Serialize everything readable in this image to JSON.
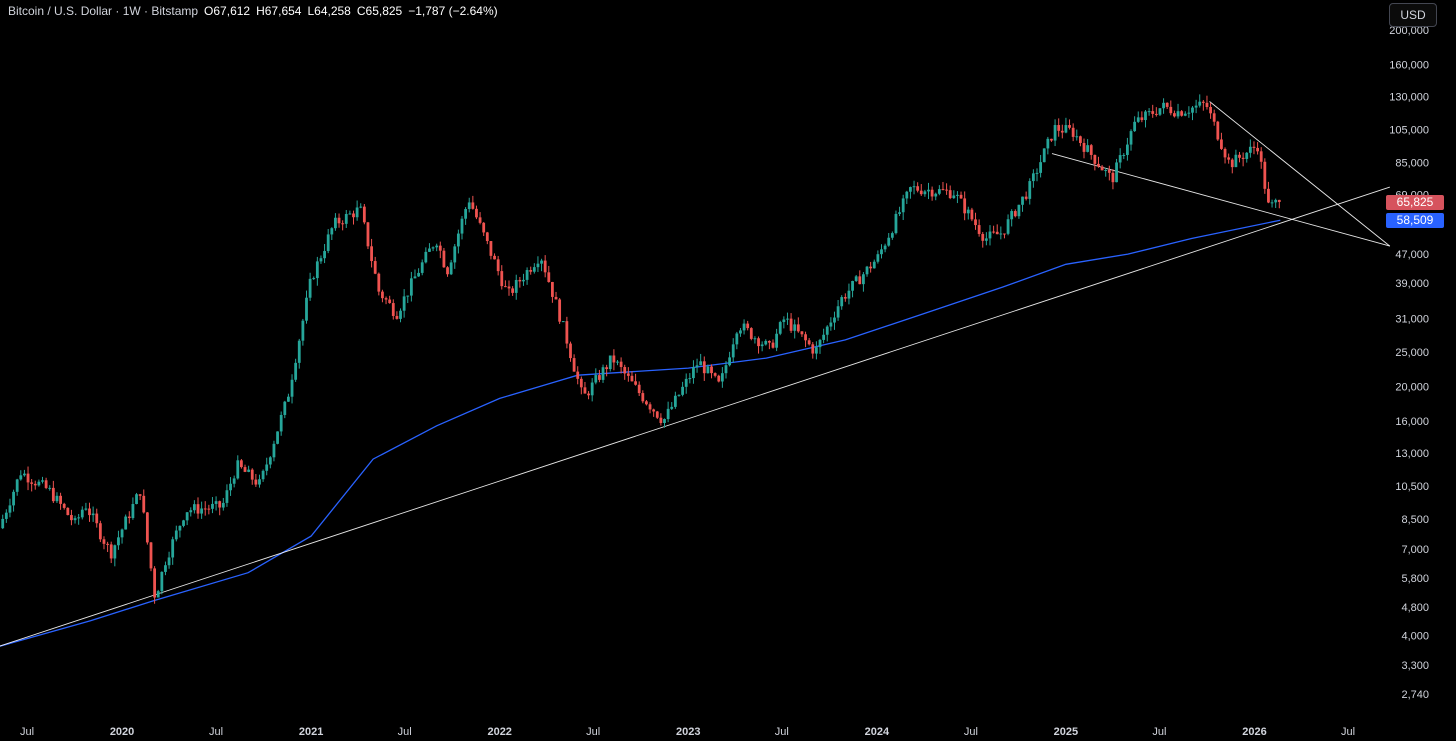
{
  "header": {
    "symbol": "Bitcoin / U.S. Dollar · 1W · Bitstamp",
    "open": "O67,612",
    "high": "H67,654",
    "low": "L64,258",
    "close": "C65,825",
    "change": "−1,787 (−2.64%)"
  },
  "currency_button": "USD",
  "price_badge": "65,825",
  "ma_badge": "58,509",
  "colors": {
    "up": "#26a69a",
    "down": "#ef5350",
    "ma": "#2962ff",
    "trendline": "#ffffff",
    "background": "#000000",
    "axis_text": "#d1d4dc"
  },
  "chart_data": {
    "type": "candlestick",
    "scale": "log",
    "interval": "1W",
    "x_labels": [
      "Jul",
      "2020",
      "Jul",
      "2021",
      "Jul",
      "2022",
      "Jul",
      "2023",
      "Jul",
      "2024",
      "Jul",
      "2025",
      "Jul",
      "2026",
      "Jul"
    ],
    "x_label_dates": [
      "2019-07",
      "2020-01",
      "2020-07",
      "2021-01",
      "2021-07",
      "2022-01",
      "2022-07",
      "2023-01",
      "2023-07",
      "2024-01",
      "2024-07",
      "2025-01",
      "2025-07",
      "2026-01",
      "2026-07"
    ],
    "y_ticks": [
      200000,
      160000,
      130000,
      105000,
      85000,
      69000,
      47000,
      39000,
      31000,
      25000,
      20000,
      16000,
      13000,
      10500,
      8500,
      7000,
      5800,
      4800,
      4000,
      3300,
      2740
    ],
    "y_tick_labels": [
      "200,000",
      "160,000",
      "130,000",
      "105,000",
      "85,000",
      "69,000",
      "47,000",
      "39,000",
      "31,000",
      "25,000",
      "20,000",
      "16,000",
      "13,000",
      "10,500",
      "8,500",
      "7,000",
      "5,800",
      "4,800",
      "4,000",
      "3,300",
      "2,740"
    ],
    "last_close": 65825,
    "ma_last": 58509,
    "close_path": [
      [
        "2019-05-15",
        8000
      ],
      [
        "2019-06-26",
        11500
      ],
      [
        "2019-08-20",
        10200
      ],
      [
        "2019-10-10",
        8200
      ],
      [
        "2019-10-28",
        9400
      ],
      [
        "2019-12-17",
        6800
      ],
      [
        "2020-02-12",
        10200
      ],
      [
        "2020-03-12",
        5100
      ],
      [
        "2020-04-01",
        6500
      ],
      [
        "2020-05-10",
        9000
      ],
      [
        "2020-07-20",
        9200
      ],
      [
        "2020-08-17",
        12000
      ],
      [
        "2020-10-01",
        10600
      ],
      [
        "2020-11-23",
        18500
      ],
      [
        "2021-01-08",
        40000
      ],
      [
        "2021-02-21",
        57000
      ],
      [
        "2021-04-13",
        63000
      ],
      [
        "2021-05-19",
        37000
      ],
      [
        "2021-06-22",
        32000
      ],
      [
        "2021-07-30",
        41000
      ],
      [
        "2021-09-07",
        52000
      ],
      [
        "2021-09-28",
        42000
      ],
      [
        "2021-11-09",
        67500
      ],
      [
        "2022-01-24",
        36000
      ],
      [
        "2022-03-28",
        47000
      ],
      [
        "2022-05-12",
        29000
      ],
      [
        "2022-06-18",
        18500
      ],
      [
        "2022-08-14",
        24000
      ],
      [
        "2022-10-01",
        19500
      ],
      [
        "2022-11-21",
        16000
      ],
      [
        "2023-01-28",
        23500
      ],
      [
        "2023-03-10",
        20000
      ],
      [
        "2023-04-14",
        30000
      ],
      [
        "2023-06-15",
        25500
      ],
      [
        "2023-07-13",
        31000
      ],
      [
        "2023-09-11",
        25000
      ],
      [
        "2023-10-30",
        35000
      ],
      [
        "2024-01-10",
        46000
      ],
      [
        "2024-03-14",
        72000
      ],
      [
        "2024-06-05",
        70000
      ],
      [
        "2024-08-05",
        52000
      ],
      [
        "2024-09-06",
        54000
      ],
      [
        "2024-10-29",
        72000
      ],
      [
        "2024-12-17",
        106000
      ],
      [
        "2025-01-20",
        104000
      ],
      [
        "2025-04-07",
        76000
      ],
      [
        "2025-05-22",
        110000
      ],
      [
        "2025-07-14",
        122000
      ],
      [
        "2025-08-14",
        118000
      ],
      [
        "2025-10-06",
        124000
      ],
      [
        "2025-11-21",
        84000
      ],
      [
        "2026-01-14",
        95000
      ],
      [
        "2026-02-05",
        63000
      ],
      [
        "2026-02-20",
        65825
      ]
    ],
    "ma_path": [
      [
        "2019-05-01",
        3700
      ],
      [
        "2019-11-01",
        4400
      ],
      [
        "2020-03-01",
        5000
      ],
      [
        "2020-09-01",
        6000
      ],
      [
        "2021-01-01",
        7600
      ],
      [
        "2021-05-01",
        12500
      ],
      [
        "2021-09-01",
        15500
      ],
      [
        "2022-01-01",
        18500
      ],
      [
        "2022-06-01",
        21500
      ],
      [
        "2023-01-01",
        22500
      ],
      [
        "2023-06-01",
        24000
      ],
      [
        "2023-11-01",
        27000
      ],
      [
        "2024-04-01",
        32000
      ],
      [
        "2024-09-01",
        38000
      ],
      [
        "2025-01-01",
        44000
      ],
      [
        "2025-05-01",
        47000
      ],
      [
        "2025-09-01",
        52000
      ],
      [
        "2026-02-20",
        58509
      ]
    ],
    "trendlines": [
      {
        "from": [
          "2019-05-01",
          3700
        ],
        "to": [
          "2026-09-20",
          72500
        ]
      },
      {
        "from": [
          "2024-12-05",
          90000
        ],
        "to": [
          "2026-09-20",
          49500
        ]
      },
      {
        "from": [
          "2025-10-06",
          126000
        ],
        "to": [
          "2026-09-20",
          49500
        ]
      }
    ]
  }
}
